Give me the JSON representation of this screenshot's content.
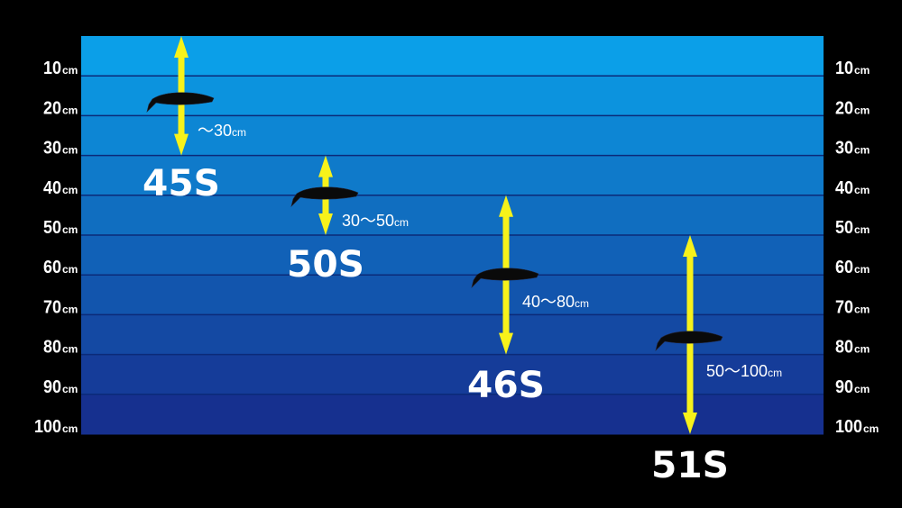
{
  "diagram": {
    "unit": "cm",
    "depth_ticks": [
      "10",
      "20",
      "30",
      "40",
      "50",
      "60",
      "70",
      "80",
      "90",
      "100"
    ],
    "colors": {
      "water_top": "#0b9fe8",
      "water_bottom": "#16308f",
      "arrow": "#f7f21a",
      "lure": "#0a0a0a",
      "background": "#000000"
    },
    "lures": [
      {
        "name": "45S",
        "range_label": "～30",
        "depth_min_cm": 0,
        "depth_max_cm": 30
      },
      {
        "name": "50S",
        "range_label": "30～50",
        "depth_min_cm": 30,
        "depth_max_cm": 50
      },
      {
        "name": "46S",
        "range_label": "40～80",
        "depth_min_cm": 40,
        "depth_max_cm": 80
      },
      {
        "name": "51S",
        "range_label": "50～100",
        "depth_min_cm": 50,
        "depth_max_cm": 100
      }
    ]
  }
}
